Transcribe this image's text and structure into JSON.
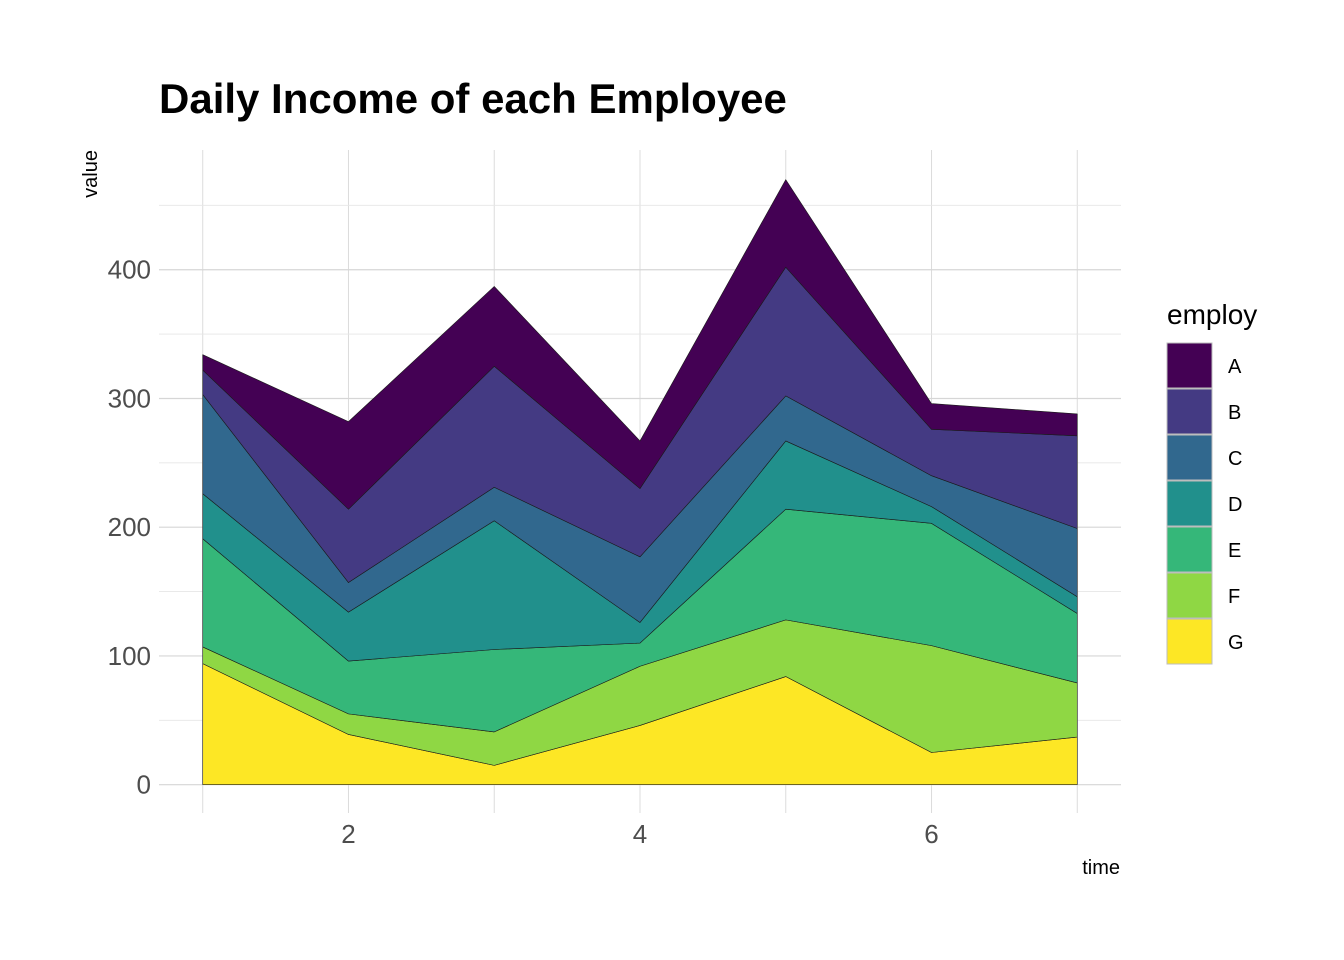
{
  "chart_data": {
    "type": "area",
    "stacked": true,
    "title": "Daily Income of each Employee",
    "xlabel": "time",
    "ylabel": "value",
    "x": [
      1,
      2,
      3,
      4,
      5,
      6,
      7
    ],
    "xlim": [
      0.7,
      7.3
    ],
    "ylim": [
      -22,
      493
    ],
    "xticks": [
      2,
      4,
      6
    ],
    "yticks": [
      0,
      100,
      200,
      300,
      400
    ],
    "xtick_labels": [
      "2",
      "4",
      "6"
    ],
    "ytick_labels": [
      "0",
      "100",
      "200",
      "300",
      "400"
    ],
    "grid": true,
    "legend_title": "employ",
    "legend_position": "right",
    "series": [
      {
        "name": "A",
        "color": "#440154",
        "values": [
          12,
          68,
          62,
          37,
          68,
          20,
          17
        ]
      },
      {
        "name": "B",
        "color": "#443A83",
        "values": [
          19,
          57,
          94,
          53,
          100,
          36,
          72
        ]
      },
      {
        "name": "C",
        "color": "#31688E",
        "values": [
          77,
          23,
          26,
          51,
          35,
          24,
          53
        ]
      },
      {
        "name": "D",
        "color": "#21908C",
        "values": [
          35,
          38,
          100,
          16,
          53,
          13,
          13
        ]
      },
      {
        "name": "E",
        "color": "#35B779",
        "values": [
          84,
          41,
          64,
          18,
          86,
          95,
          54
        ]
      },
      {
        "name": "F",
        "color": "#8FD744",
        "values": [
          13,
          16,
          26,
          46,
          44,
          83,
          42
        ]
      },
      {
        "name": "G",
        "color": "#FDE725",
        "values": [
          94,
          39,
          15,
          46,
          84,
          25,
          37
        ]
      }
    ]
  }
}
